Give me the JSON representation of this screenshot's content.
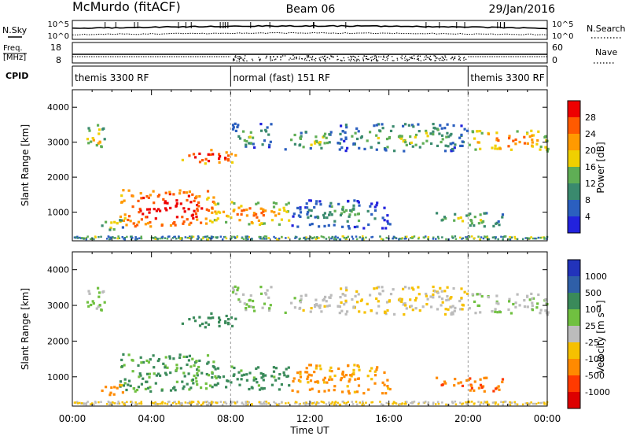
{
  "header": {
    "station": "McMurdo (fitACF)",
    "beam": "Beam 06",
    "date": "29/Jan/2016"
  },
  "top_panel": {
    "nsky_label": "N.Sky",
    "nsearch_label": "N.Search",
    "left_ticks": [
      "10^5",
      "10^0"
    ],
    "right_ticks": [
      "10^5",
      "10^0"
    ],
    "freq_label_1": "Freq.",
    "freq_label_2": "[MHz]",
    "nave_label": "Nave",
    "freq_ticks": [
      "18",
      "8"
    ],
    "nave_ticks": [
      "60",
      "0"
    ],
    "cpid_label": "CPID"
  },
  "cpid_segments": [
    {
      "label": "themis 3300 RF",
      "start_h": 0,
      "end_h": 8
    },
    {
      "label": "normal (fast) 151 RF",
      "start_h": 8,
      "end_h": 20
    },
    {
      "label": "themis 3300 RF",
      "start_h": 20,
      "end_h": 24
    }
  ],
  "axes": {
    "x_ticks": [
      "00:00",
      "04:00",
      "08:00",
      "12:00",
      "16:00",
      "20:00",
      "00:00"
    ],
    "x_label": "Time UT",
    "y_ticks": [
      "1000",
      "2000",
      "3000",
      "4000"
    ],
    "y_label": "Slant Range [km]"
  },
  "power_scale": {
    "label": "Power [dB]",
    "ticks": [
      "4",
      "8",
      "12",
      "16",
      "20",
      "24",
      "28"
    ],
    "colors": [
      "#2222dd",
      "#2b5fbf",
      "#3a8a6e",
      "#5fae55",
      "#f0d000",
      "#ff9a00",
      "#ff5a00",
      "#ee0000"
    ]
  },
  "velocity_scale": {
    "label": "Velocity [m s⁻¹]",
    "ticks": [
      "1000",
      "500",
      "100",
      "25",
      "-25",
      "-100",
      "-500",
      "-1000"
    ],
    "colors": [
      "#2233bb",
      "#2f5fa8",
      "#3a8a5a",
      "#70c040",
      "#bcbcbc",
      "#f6c000",
      "#ff8a00",
      "#ff3a00",
      "#dd0000"
    ]
  },
  "chart_data": {
    "type": "heatmap",
    "x_range_hours": [
      0,
      24
    ],
    "y_range_km": [
      180,
      4500
    ],
    "panels": [
      "power",
      "velocity"
    ],
    "echo_regions": [
      {
        "t0": 0.6,
        "t1": 1.6,
        "r0": 2700,
        "r1": 3450,
        "power": 16,
        "velocity": 30
      },
      {
        "t0": 5.5,
        "t1": 8.2,
        "r0": 2350,
        "r1": 2750,
        "power": 26,
        "velocity": 200
      },
      {
        "t0": 2.3,
        "t1": 7.2,
        "r0": 550,
        "r1": 1600,
        "power": 27,
        "velocity": 100
      },
      {
        "t0": 7.0,
        "t1": 11.0,
        "r0": 600,
        "r1": 1250,
        "power": 20,
        "velocity": 150
      },
      {
        "t0": 1.2,
        "t1": 2.6,
        "r0": 450,
        "r1": 750,
        "power": 14,
        "velocity": -150
      },
      {
        "t0": 8.0,
        "t1": 10.0,
        "r0": 2800,
        "r1": 3500,
        "power": 10,
        "velocity": 20
      },
      {
        "t0": 10.7,
        "t1": 13.5,
        "r0": 2750,
        "r1": 3300,
        "power": 12,
        "velocity": 0
      },
      {
        "t0": 13.5,
        "t1": 20.0,
        "r0": 2700,
        "r1": 3500,
        "power": 11,
        "velocity": -30
      },
      {
        "t0": 20.0,
        "t1": 24.0,
        "r0": 2700,
        "r1": 3300,
        "power": 20,
        "velocity": 10
      },
      {
        "t0": 18.3,
        "t1": 21.8,
        "r0": 550,
        "r1": 950,
        "power": 13,
        "velocity": -400
      },
      {
        "t0": 11.0,
        "t1": 16.0,
        "r0": 500,
        "r1": 1300,
        "power": 8,
        "velocity": -120
      }
    ]
  }
}
